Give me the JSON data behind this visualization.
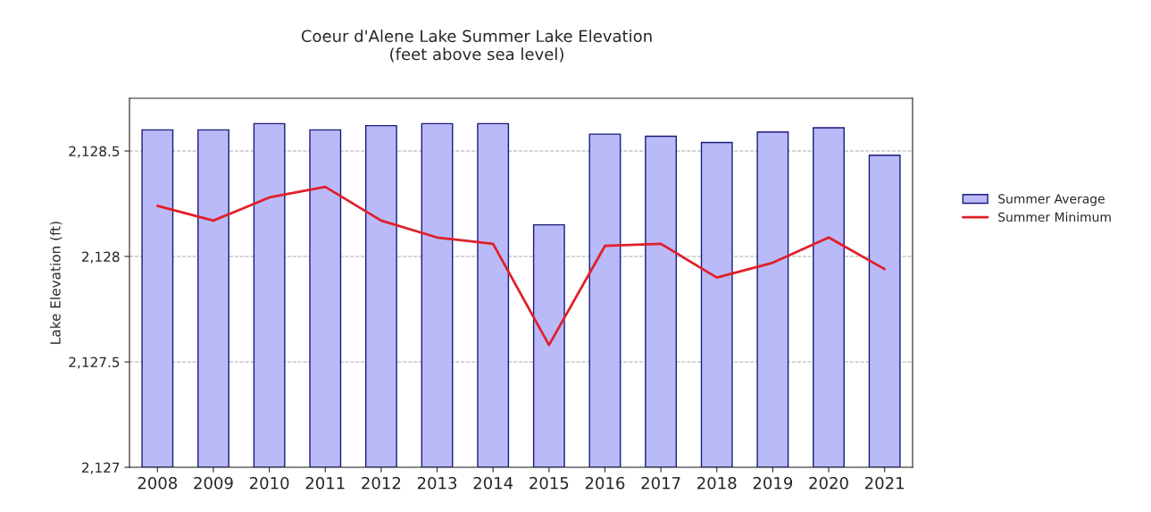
{
  "chart_data": {
    "type": "bar",
    "title": "Coeur d'Alene Lake Summer Lake Elevation\n(feet above sea level)",
    "ylabel": "Lake Elevation (ft)",
    "categories": [
      "2008",
      "2009",
      "2010",
      "2011",
      "2012",
      "2013",
      "2014",
      "2015",
      "2016",
      "2017",
      "2018",
      "2019",
      "2020",
      "2021"
    ],
    "series": [
      {
        "name": "Summer Average",
        "color": "#babaf8",
        "values": [
          2128.6,
          2128.6,
          2128.63,
          2128.6,
          2128.62,
          2128.63,
          2128.63,
          2128.15,
          2128.58,
          2128.57,
          2128.54,
          2128.59,
          2128.61,
          2128.48
        ]
      },
      {
        "name": "Summer Minimum",
        "type": "line",
        "color": "#e0202a",
        "values": [
          2128.24,
          2128.17,
          2128.28,
          2128.33,
          2128.17,
          2128.09,
          2128.06,
          2127.58,
          2128.05,
          2128.06,
          2127.9,
          2127.97,
          2128.09,
          2127.94
        ]
      }
    ],
    "ylim": [
      2127,
      2128.75
    ],
    "yticks": [
      {
        "value": 2127,
        "label": "2,127"
      },
      {
        "value": 2127.5,
        "label": "2,127.5"
      },
      {
        "value": 2128,
        "label": "2,128"
      },
      {
        "value": 2128.5,
        "label": "2,128.5"
      }
    ],
    "grid": "y",
    "legend": "right"
  }
}
